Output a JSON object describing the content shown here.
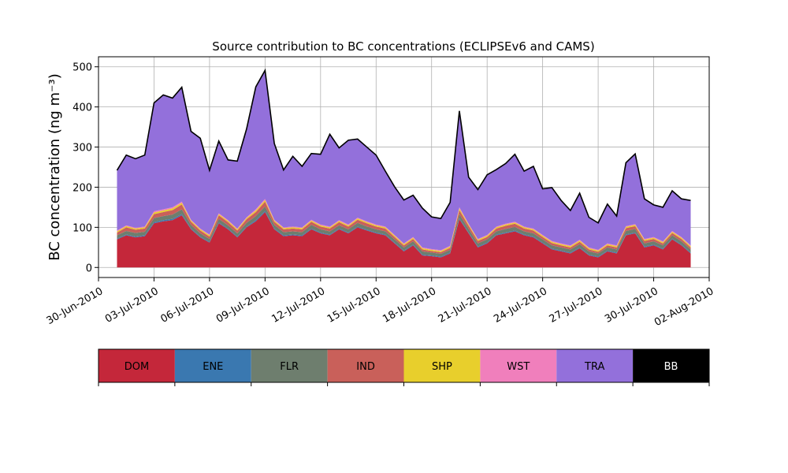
{
  "chart_data": {
    "type": "area",
    "stacked": true,
    "title": "Source contribution to BC concentrations (ECLIPSEv6 and CAMS)",
    "xlabel": "",
    "ylabel": "BC concentration (ng m⁻³)",
    "ylim": [
      -25,
      525
    ],
    "yticks": [
      0,
      100,
      200,
      300,
      400,
      500
    ],
    "xlim": [
      "2010-06-30T00",
      "2010-08-02T00"
    ],
    "xticks": [
      "2010-06-30",
      "2010-07-03",
      "2010-07-06",
      "2010-07-09",
      "2010-07-12",
      "2010-07-15",
      "2010-07-18",
      "2010-07-21",
      "2010-07-24",
      "2010-07-27",
      "2010-07-30",
      "2010-08-02"
    ],
    "xtick_labels": [
      "30-Jun-2010",
      "03-Jul-2010",
      "06-Jul-2010",
      "09-Jul-2010",
      "12-Jul-2010",
      "15-Jul-2010",
      "18-Jul-2010",
      "21-Jul-2010",
      "24-Jul-2010",
      "27-Jul-2010",
      "30-Jul-2010",
      "02-Aug-2010"
    ],
    "grid": true,
    "x": [
      "2010-07-01",
      "2010-07-01T12",
      "2010-07-02",
      "2010-07-02T12",
      "2010-07-03",
      "2010-07-03T12",
      "2010-07-04",
      "2010-07-04T12",
      "2010-07-05",
      "2010-07-05T12",
      "2010-07-06",
      "2010-07-06T12",
      "2010-07-07",
      "2010-07-07T12",
      "2010-07-08",
      "2010-07-08T12",
      "2010-07-09",
      "2010-07-09T12",
      "2010-07-10",
      "2010-07-10T12",
      "2010-07-11",
      "2010-07-11T12",
      "2010-07-12",
      "2010-07-12T12",
      "2010-07-13",
      "2010-07-13T12",
      "2010-07-14",
      "2010-07-14T12",
      "2010-07-15",
      "2010-07-15T12",
      "2010-07-16",
      "2010-07-16T12",
      "2010-07-17",
      "2010-07-17T12",
      "2010-07-18",
      "2010-07-18T12",
      "2010-07-19",
      "2010-07-19T12",
      "2010-07-20",
      "2010-07-20T12",
      "2010-07-21",
      "2010-07-21T12",
      "2010-07-22",
      "2010-07-22T12",
      "2010-07-23",
      "2010-07-23T12",
      "2010-07-24",
      "2010-07-24T12",
      "2010-07-25",
      "2010-07-25T12",
      "2010-07-26",
      "2010-07-26T12",
      "2010-07-27",
      "2010-07-27T12",
      "2010-07-28",
      "2010-07-28T12",
      "2010-07-29",
      "2010-07-29T12",
      "2010-07-30",
      "2010-07-30T12",
      "2010-07-31",
      "2010-07-31T12",
      "2010-08-01"
    ],
    "series": [
      {
        "name": "DOM",
        "color": "#c4273a",
        "values": [
          70,
          80,
          75,
          78,
          110,
          115,
          118,
          130,
          95,
          75,
          62,
          110,
          95,
          75,
          100,
          115,
          138,
          95,
          78,
          80,
          78,
          95,
          85,
          80,
          95,
          85,
          100,
          92,
          85,
          80,
          60,
          40,
          55,
          30,
          28,
          25,
          35,
          120,
          85,
          50,
          60,
          80,
          85,
          90,
          80,
          75,
          60,
          45,
          40,
          35,
          48,
          30,
          25,
          40,
          35,
          80,
          85,
          50,
          55,
          45,
          70,
          55,
          35
        ]
      },
      {
        "name": "ENE",
        "color": "#3a78b0",
        "values": [
          2,
          2,
          2,
          2,
          3,
          3,
          3,
          3,
          2,
          2,
          2,
          2,
          2,
          2,
          2,
          3,
          3,
          2,
          2,
          2,
          2,
          2,
          2,
          2,
          2,
          2,
          2,
          2,
          2,
          2,
          2,
          2,
          2,
          2,
          2,
          2,
          2,
          3,
          2,
          2,
          2,
          2,
          2,
          2,
          2,
          2,
          2,
          2,
          2,
          2,
          2,
          2,
          2,
          2,
          2,
          2,
          2,
          2,
          2,
          2,
          2,
          2,
          2
        ]
      },
      {
        "name": "FLR",
        "color": "#6e7e6e",
        "values": [
          8,
          9,
          9,
          9,
          10,
          10,
          11,
          12,
          9,
          8,
          7,
          9,
          8,
          8,
          9,
          10,
          11,
          9,
          8,
          8,
          8,
          9,
          8,
          8,
          8,
          8,
          9,
          8,
          8,
          8,
          8,
          8,
          8,
          8,
          7,
          7,
          7,
          10,
          9,
          8,
          8,
          8,
          9,
          9,
          8,
          8,
          8,
          8,
          8,
          8,
          8,
          8,
          8,
          8,
          8,
          9,
          9,
          8,
          8,
          8,
          8,
          8,
          8
        ]
      },
      {
        "name": "IND",
        "color": "#c9605a",
        "values": [
          7,
          9,
          8,
          8,
          10,
          10,
          11,
          12,
          8,
          7,
          6,
          9,
          8,
          7,
          9,
          10,
          12,
          8,
          7,
          7,
          7,
          8,
          7,
          7,
          8,
          7,
          8,
          8,
          7,
          7,
          6,
          5,
          6,
          5,
          4,
          4,
          5,
          10,
          8,
          6,
          6,
          7,
          8,
          8,
          7,
          7,
          6,
          6,
          5,
          5,
          6,
          5,
          4,
          5,
          5,
          7,
          7,
          6,
          6,
          5,
          6,
          6,
          5
        ]
      },
      {
        "name": "SHP",
        "color": "#e8cf2c",
        "values": [
          3,
          3,
          3,
          3,
          4,
          4,
          4,
          4,
          3,
          3,
          3,
          3,
          3,
          3,
          3,
          4,
          4,
          3,
          3,
          3,
          3,
          3,
          3,
          3,
          3,
          3,
          3,
          3,
          3,
          3,
          3,
          3,
          3,
          3,
          3,
          3,
          3,
          4,
          3,
          3,
          3,
          3,
          3,
          3,
          3,
          3,
          3,
          3,
          3,
          3,
          3,
          3,
          3,
          3,
          3,
          3,
          3,
          3,
          3,
          3,
          3,
          3,
          3
        ]
      },
      {
        "name": "WST",
        "color": "#f07fbc",
        "values": [
          2,
          2,
          2,
          2,
          3,
          3,
          3,
          3,
          2,
          2,
          2,
          2,
          2,
          2,
          2,
          3,
          3,
          2,
          2,
          2,
          2,
          2,
          2,
          2,
          2,
          2,
          2,
          2,
          2,
          2,
          2,
          2,
          2,
          2,
          2,
          2,
          2,
          3,
          2,
          2,
          2,
          2,
          2,
          2,
          2,
          2,
          2,
          2,
          2,
          2,
          2,
          2,
          2,
          2,
          2,
          2,
          2,
          2,
          2,
          2,
          2,
          2,
          2
        ]
      },
      {
        "name": "TRA",
        "color": "#9370db",
        "values": [
          150,
          175,
          172,
          178,
          270,
          285,
          272,
          285,
          220,
          225,
          160,
          180,
          150,
          168,
          220,
          305,
          320,
          190,
          143,
          175,
          152,
          165,
          175,
          230,
          180,
          210,
          196,
          185,
          173,
          138,
          120,
          108,
          104,
          98,
          80,
          79,
          108,
          240,
          116,
          123,
          150,
          142,
          150,
          168,
          138,
          155,
          115,
          133,
          107,
          87,
          116,
          75,
          67,
          98,
          73,
          158,
          175,
          100,
          80,
          85,
          100,
          95,
          112
        ]
      },
      {
        "name": "BB",
        "color": "#000000",
        "values": [
          0,
          0,
          0,
          0,
          0,
          0,
          0,
          0,
          0,
          0,
          0,
          0,
          0,
          0,
          0,
          0,
          0,
          0,
          0,
          0,
          0,
          0,
          0,
          0,
          0,
          0,
          0,
          0,
          0,
          0,
          0,
          0,
          0,
          0,
          0,
          0,
          0,
          0,
          0,
          0,
          0,
          0,
          0,
          0,
          0,
          0,
          0,
          0,
          0,
          0,
          0,
          0,
          0,
          0,
          0,
          0,
          0,
          0,
          0,
          0,
          0,
          0,
          0
        ]
      }
    ],
    "legend": {
      "placement": "bottom",
      "entries": [
        {
          "label": "DOM",
          "color": "#c4273a",
          "text_color": "#000000"
        },
        {
          "label": "ENE",
          "color": "#3a78b0",
          "text_color": "#000000"
        },
        {
          "label": "FLR",
          "color": "#6e7e6e",
          "text_color": "#000000"
        },
        {
          "label": "IND",
          "color": "#c9605a",
          "text_color": "#000000"
        },
        {
          "label": "SHP",
          "color": "#e8cf2c",
          "text_color": "#000000"
        },
        {
          "label": "WST",
          "color": "#f07fbc",
          "text_color": "#000000"
        },
        {
          "label": "TRA",
          "color": "#9370db",
          "text_color": "#000000"
        },
        {
          "label": "BB",
          "color": "#000000",
          "text_color": "#ffffff"
        }
      ]
    }
  }
}
